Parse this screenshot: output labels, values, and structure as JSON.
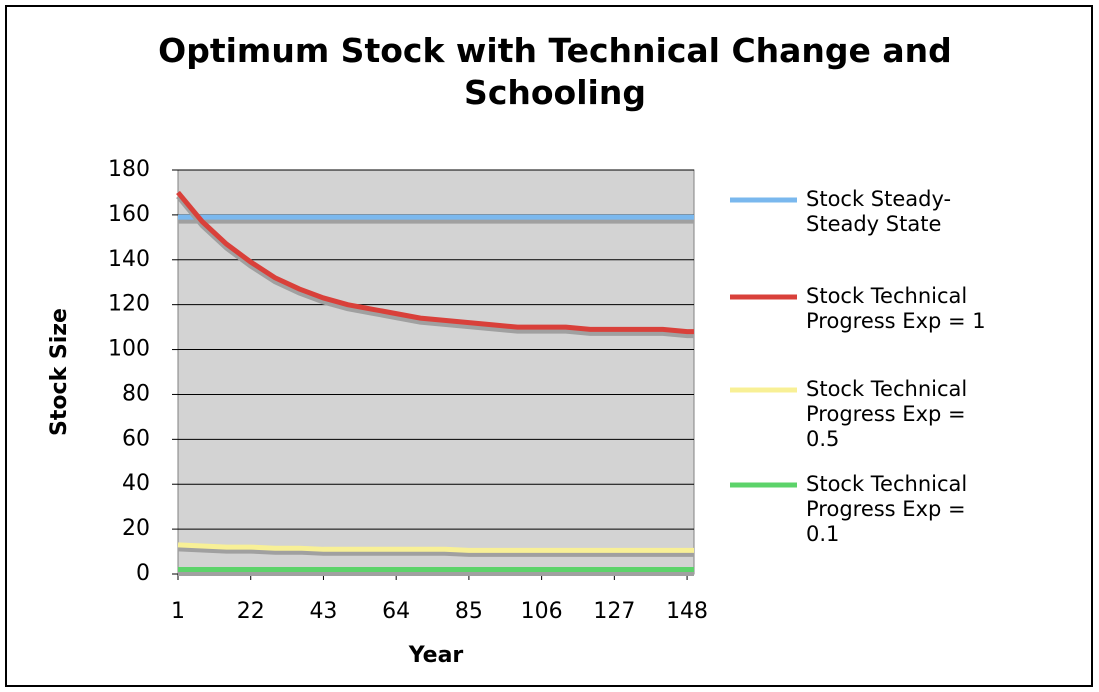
{
  "chart_data": {
    "type": "line",
    "title": "Optimum Stock with Technical Change and Schooling",
    "xlabel": "Year",
    "ylabel": "Stock Size",
    "x": [
      1,
      8,
      15,
      22,
      29,
      36,
      43,
      50,
      57,
      64,
      71,
      78,
      85,
      92,
      99,
      106,
      113,
      120,
      127,
      134,
      141,
      148,
      150
    ],
    "xlim": [
      1,
      150
    ],
    "xticks": [
      1,
      22,
      43,
      64,
      85,
      106,
      127,
      148
    ],
    "ylim": [
      0,
      180
    ],
    "yticks": [
      0,
      20,
      40,
      60,
      80,
      100,
      120,
      140,
      160,
      180
    ],
    "grid": true,
    "legend": "right",
    "plot_background": "#d3d3d3",
    "series": [
      {
        "name": "Stock Steady-Steady State",
        "color": "#7ab8ee",
        "values": [
          159,
          159,
          159,
          159,
          159,
          159,
          159,
          159,
          159,
          159,
          159,
          159,
          159,
          159,
          159,
          159,
          159,
          159,
          159,
          159,
          159,
          159,
          159
        ]
      },
      {
        "name": "Stock Technical Progress Exp = 1",
        "color": "#d9403a",
        "values": [
          170,
          157,
          147,
          139,
          132,
          127,
          123,
          120,
          118,
          116,
          114,
          113,
          112,
          111,
          110,
          110,
          110,
          109,
          109,
          109,
          109,
          108,
          108
        ]
      },
      {
        "name": "Stock Technical Progress Exp = 0.5",
        "color": "#f8f096",
        "values": [
          13,
          12.5,
          12,
          12,
          11.5,
          11.5,
          11,
          11,
          11,
          11,
          11,
          11,
          10.5,
          10.5,
          10.5,
          10.5,
          10.5,
          10.5,
          10.5,
          10.5,
          10.5,
          10.5,
          10.5
        ]
      },
      {
        "name": "Stock Technical Progress Exp = 0.1",
        "color": "#5cd36a",
        "values": [
          2,
          2,
          2,
          2,
          2,
          2,
          2,
          2,
          2,
          2,
          2,
          2,
          2,
          2,
          2,
          2,
          2,
          2,
          2,
          2,
          2,
          2,
          2
        ]
      }
    ]
  }
}
